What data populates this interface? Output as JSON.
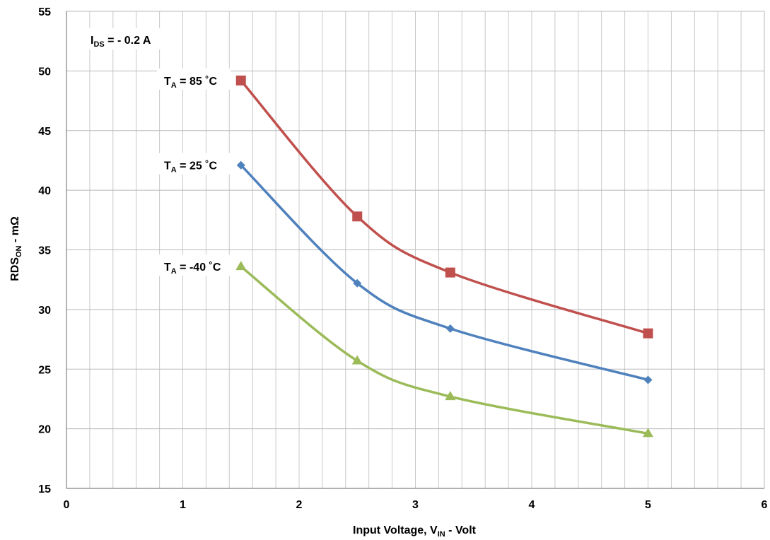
{
  "chart_data": {
    "type": "line",
    "xlabel": {
      "main": "Input Voltage, V",
      "sub": "IN",
      "tail": " - Volt"
    },
    "ylabel": {
      "main": "RDS",
      "sub": "ON",
      "tail": " - mΩ"
    },
    "xlim": [
      0,
      6
    ],
    "ylim": [
      15,
      55
    ],
    "x_ticks": [
      "0",
      "1",
      "2",
      "3",
      "4",
      "5",
      "6"
    ],
    "y_ticks": [
      "15",
      "20",
      "25",
      "30",
      "35",
      "40",
      "45",
      "50",
      "55"
    ],
    "x_minor_step": 0.2,
    "grid": true,
    "annotation": {
      "main": "I",
      "sub": "DS",
      "tail": " = - 0.2 A"
    },
    "series": [
      {
        "label": {
          "main": "T",
          "sub": "A",
          "tail": " = 85 ˚C"
        },
        "color": "#C0504D",
        "marker": "square",
        "x": [
          1.5,
          2.5,
          3.3,
          5.0
        ],
        "values": [
          49.2,
          37.8,
          33.1,
          28.0
        ]
      },
      {
        "label": {
          "main": "T",
          "sub": "A",
          "tail": " = 25 ˚C"
        },
        "color": "#4F81BD",
        "marker": "diamond",
        "x": [
          1.5,
          2.5,
          3.3,
          5.0
        ],
        "values": [
          42.1,
          32.2,
          28.4,
          24.1
        ]
      },
      {
        "label": {
          "main": "T",
          "sub": "A",
          "tail": " = -40 ˚C"
        },
        "color": "#9BBB59",
        "marker": "triangle",
        "x": [
          1.5,
          2.5,
          3.3,
          5.0
        ],
        "values": [
          33.6,
          25.7,
          22.7,
          19.6
        ]
      }
    ]
  }
}
